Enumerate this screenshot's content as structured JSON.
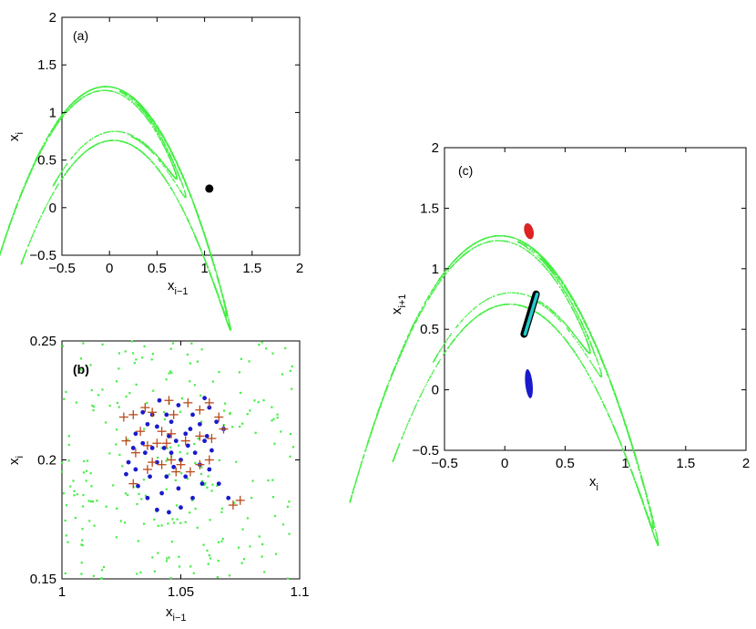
{
  "chart_data": [
    {
      "panel": "(a)",
      "type": "scatter",
      "xlabel_base": "x",
      "xlabel_sub": "i−1",
      "ylabel_base": "x",
      "ylabel_sub": "i",
      "xlim": [
        -0.5,
        2
      ],
      "ylim": [
        -0.5,
        2
      ],
      "xticks": [
        "−0.5",
        "0",
        "0.5",
        "1",
        "1.5",
        "2"
      ],
      "yticks": [
        "−0.5",
        "0",
        "0.5",
        "1",
        "1.5",
        "2"
      ],
      "colors": {
        "attractor": "#44ee44",
        "point": "#000000"
      },
      "series": [
        {
          "kind": "attractor",
          "points": "Henon-like map x_{i+1} = 1 - 1.4 x_i^2 + 0.3 x_{i-1} attractor"
        },
        {
          "kind": "point",
          "points": [
            [
              1.05,
              0.2
            ]
          ]
        }
      ]
    },
    {
      "panel": "(b)",
      "type": "scatter",
      "xlabel_base": "x",
      "xlabel_sub": "i−1",
      "ylabel_base": "x",
      "ylabel_sub": "i",
      "xlim": [
        1.0,
        1.1
      ],
      "ylim": [
        0.15,
        0.25
      ],
      "xticks": [
        "1",
        "1.05",
        "1.1"
      ],
      "yticks": [
        "0.15",
        "0.2",
        "0.25"
      ],
      "colors": {
        "attractor": "#44ee44",
        "blue": "#1a1acc",
        "cross": "#b84a1a"
      },
      "series": [
        {
          "kind": "dots",
          "color": "blue",
          "points": [
            [
              1.031,
              0.211
            ],
            [
              1.034,
              0.207
            ],
            [
              1.036,
              0.215
            ],
            [
              1.038,
              0.219
            ],
            [
              1.04,
              0.214
            ],
            [
              1.044,
              0.219
            ],
            [
              1.046,
              0.216
            ],
            [
              1.045,
              0.21
            ],
            [
              1.049,
              0.223
            ],
            [
              1.052,
              0.211
            ],
            [
              1.054,
              0.213
            ],
            [
              1.055,
              0.219
            ],
            [
              1.053,
              0.206
            ],
            [
              1.048,
              0.208
            ],
            [
              1.05,
              0.2
            ],
            [
              1.047,
              0.197
            ],
            [
              1.044,
              0.193
            ],
            [
              1.04,
              0.199
            ],
            [
              1.038,
              0.205
            ],
            [
              1.035,
              0.203
            ],
            [
              1.03,
              0.205
            ],
            [
              1.028,
              0.199
            ],
            [
              1.027,
              0.194
            ],
            [
              1.032,
              0.189
            ],
            [
              1.036,
              0.184
            ],
            [
              1.04,
              0.179
            ],
            [
              1.045,
              0.178
            ],
            [
              1.05,
              0.18
            ],
            [
              1.055,
              0.184
            ],
            [
              1.059,
              0.19
            ],
            [
              1.062,
              0.196
            ],
            [
              1.063,
              0.204
            ],
            [
              1.061,
              0.21
            ],
            [
              1.058,
              0.215
            ],
            [
              1.065,
              0.216
            ],
            [
              1.068,
              0.213
            ],
            [
              1.062,
              0.222
            ],
            [
              1.06,
              0.226
            ],
            [
              1.07,
              0.184
            ],
            [
              1.042,
              0.186
            ],
            [
              1.037,
              0.193
            ],
            [
              1.046,
              0.203
            ],
            [
              1.056,
              0.203
            ],
            [
              1.058,
              0.198
            ],
            [
              1.052,
              0.193
            ],
            [
              1.041,
              0.225
            ],
            [
              1.034,
              0.22
            ],
            [
              1.06,
              0.208
            ],
            [
              1.043,
              0.205
            ],
            [
              1.049,
              0.188
            ],
            [
              1.066,
              0.19
            ],
            [
              1.031,
              0.196
            ]
          ]
        },
        {
          "kind": "cross",
          "color": "cross",
          "points": [
            [
              1.026,
              0.218
            ],
            [
              1.03,
              0.219
            ],
            [
              1.035,
              0.222
            ],
            [
              1.038,
              0.22
            ],
            [
              1.045,
              0.225
            ],
            [
              1.047,
              0.219
            ],
            [
              1.053,
              0.224
            ],
            [
              1.058,
              0.221
            ],
            [
              1.062,
              0.224
            ],
            [
              1.066,
              0.218
            ],
            [
              1.068,
              0.213
            ],
            [
              1.063,
              0.209
            ],
            [
              1.058,
              0.21
            ],
            [
              1.052,
              0.208
            ],
            [
              1.046,
              0.211
            ],
            [
              1.04,
              0.207
            ],
            [
              1.036,
              0.206
            ],
            [
              1.031,
              0.203
            ],
            [
              1.027,
              0.208
            ],
            [
              1.033,
              0.212
            ],
            [
              1.038,
              0.199
            ],
            [
              1.042,
              0.198
            ],
            [
              1.046,
              0.2
            ],
            [
              1.05,
              0.198
            ],
            [
              1.054,
              0.195
            ],
            [
              1.058,
              0.198
            ],
            [
              1.062,
              0.2
            ],
            [
              1.048,
              0.195
            ],
            [
              1.044,
              0.207
            ],
            [
              1.036,
              0.196
            ],
            [
              1.03,
              0.19
            ],
            [
              1.042,
              0.212
            ],
            [
              1.072,
              0.181
            ],
            [
              1.075,
              0.183
            ]
          ]
        },
        {
          "kind": "attractor",
          "points": "sparse green background points"
        }
      ]
    },
    {
      "panel": "(c)",
      "type": "scatter",
      "xlabel_base": "x",
      "xlabel_sub": "i",
      "ylabel_base": "x",
      "ylabel_sub": "i+1",
      "xlim": [
        -0.5,
        2
      ],
      "ylim": [
        -0.5,
        2
      ],
      "xticks": [
        "−0.5",
        "0",
        "0.5",
        "1",
        "1.5",
        "2"
      ],
      "yticks": [
        "−0.5",
        "0",
        "0.5",
        "1",
        "1.5",
        "2"
      ],
      "colors": {
        "attractor": "#44ee44",
        "red": "#dd2222",
        "cyan": "#22cccc",
        "black": "#000000",
        "blue": "#1a1acc"
      },
      "series": [
        {
          "kind": "attractor",
          "points": "Henon-like attractor"
        },
        {
          "kind": "blob",
          "color": "red",
          "center": [
            0.2,
            1.31
          ]
        },
        {
          "kind": "bar",
          "color": "cyan",
          "from": [
            0.16,
            0.46
          ],
          "to": [
            0.26,
            0.79
          ]
        },
        {
          "kind": "blob",
          "color": "blue",
          "center": [
            0.2,
            0.05
          ]
        }
      ]
    }
  ]
}
